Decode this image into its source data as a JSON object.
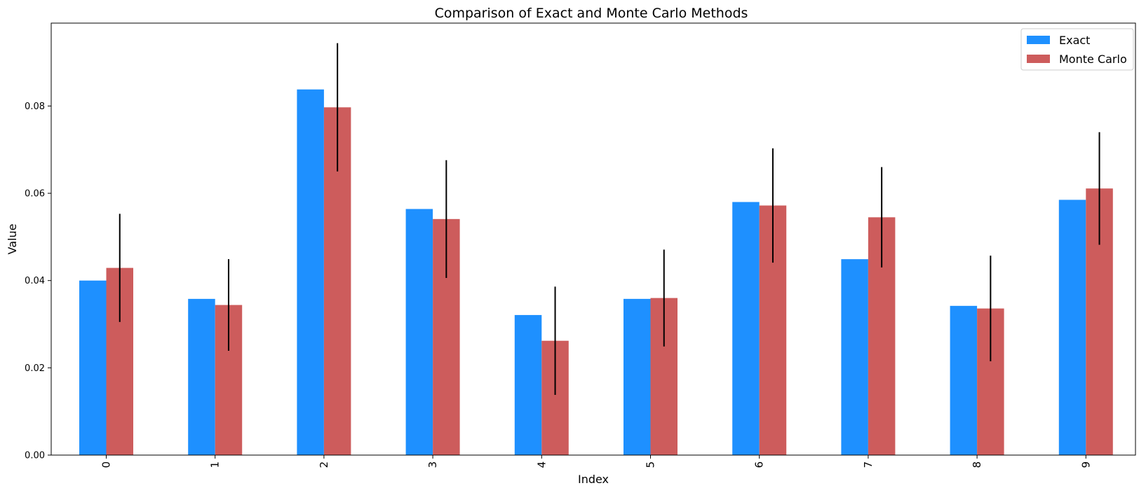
{
  "chart_data": {
    "type": "bar",
    "title": "Comparison of Exact and Monte Carlo Methods",
    "xlabel": "Index",
    "ylabel": "Value",
    "categories": [
      "0",
      "1",
      "2",
      "3",
      "4",
      "5",
      "6",
      "7",
      "8",
      "9"
    ],
    "ylim": [
      0,
      0.099
    ],
    "yticks": [
      "0.00",
      "0.02",
      "0.04",
      "0.06",
      "0.08"
    ],
    "legend_position": "top-right",
    "grid": false,
    "series": [
      {
        "name": "Exact",
        "color": "#1e90ff",
        "values": [
          0.04,
          0.0358,
          0.0838,
          0.0564,
          0.0321,
          0.0358,
          0.058,
          0.0449,
          0.0342,
          0.0585
        ]
      },
      {
        "name": "Monte Carlo",
        "color": "#cd5c5c",
        "values": [
          0.0429,
          0.0344,
          0.0797,
          0.0541,
          0.0262,
          0.036,
          0.0572,
          0.0545,
          0.0336,
          0.0611
        ],
        "error": [
          0.0124,
          0.0105,
          0.0147,
          0.0135,
          0.0124,
          0.0111,
          0.0131,
          0.0115,
          0.0121,
          0.0129
        ]
      }
    ]
  }
}
